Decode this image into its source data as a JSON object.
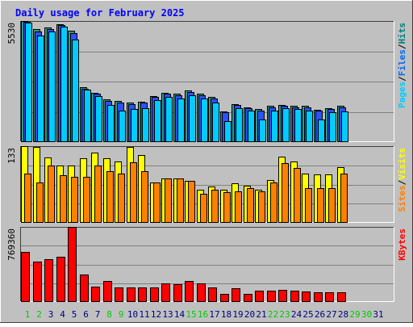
{
  "chart_data": {
    "type": "bar",
    "title": "Daily usage for February 2025",
    "days": [
      "1",
      "2",
      "3",
      "4",
      "5",
      "6",
      "7",
      "8",
      "9",
      "10",
      "11",
      "12",
      "13",
      "14",
      "15",
      "16",
      "17",
      "18",
      "19",
      "20",
      "21",
      "22",
      "23",
      "24",
      "25",
      "26",
      "27",
      "28",
      "29",
      "30",
      "31"
    ],
    "weekend_days": [
      "1",
      "2",
      "8",
      "9",
      "15",
      "16",
      "22",
      "23",
      "29",
      "30"
    ],
    "data_days": 28,
    "panels": [
      {
        "id": "hits",
        "ymax": 5530,
        "ytick_label": "5530",
        "legend": [
          "Pages",
          "/",
          "Files",
          "/",
          "Hits"
        ],
        "legend_colors": [
          "#00ccff",
          "#000000",
          "#0066ff",
          "#000000",
          "#008080"
        ],
        "series": [
          {
            "name": "Hits",
            "color": "#2f9b86",
            "values": [
              5530,
              5150,
              5250,
              5400,
              5100,
              2500,
              2250,
              1950,
              1880,
              1800,
              1850,
              2100,
              2250,
              2200,
              2350,
              2200,
              2050,
              1400,
              1750,
              1600,
              1500,
              1650,
              1700,
              1650,
              1650,
              1480,
              1550,
              1650
            ]
          },
          {
            "name": "Files",
            "color": "#2a52ff",
            "values": [
              5480,
              5050,
              5150,
              5350,
              4980,
              2450,
              2200,
              1880,
              1820,
              1750,
              1800,
              2050,
              2200,
              2150,
              2300,
              2150,
              2000,
              1350,
              1700,
              1550,
              1450,
              1600,
              1650,
              1600,
              1600,
              1430,
              1500,
              1600
            ]
          },
          {
            "name": "Pages",
            "color": "#00ccff",
            "values": [
              5450,
              4850,
              5050,
              5280,
              4700,
              2400,
              2100,
              1700,
              1450,
              1500,
              1550,
              1900,
              2050,
              2000,
              2150,
              2000,
              1800,
              950,
              1550,
              1450,
              1050,
              1450,
              1550,
              1500,
              1450,
              1050,
              1350,
              1400
            ]
          }
        ]
      },
      {
        "id": "visits",
        "ymax": 133,
        "ytick_label": "133",
        "legend": [
          "Sites",
          "/",
          "Visits"
        ],
        "legend_colors": [
          "#ff8000",
          "#000000",
          "#ffff00"
        ],
        "series": [
          {
            "name": "Visits",
            "color": "#ffff00",
            "values": [
              133,
              132,
              113,
              100,
              100,
              112,
              122,
              112,
              107,
              132,
              118,
              70,
              77,
              77,
              73,
              58,
              63,
              58,
              68,
              64,
              58,
              74,
              115,
              107,
              86,
              84,
              84,
              96
            ]
          },
          {
            "name": "Sites",
            "color": "#ff8000",
            "values": [
              85,
              70,
              100,
              83,
              80,
              80,
              99,
              90,
              85,
              105,
              89,
              70,
              77,
              77,
              73,
              50,
              58,
              53,
              55,
              60,
              55,
              70,
              103,
              95,
              60,
              60,
              60,
              85
            ]
          }
        ]
      },
      {
        "id": "kbytes",
        "ymax": 769360,
        "ytick_label": "769360",
        "legend": [
          "KBytes"
        ],
        "legend_colors": [
          "#ff0000"
        ],
        "series": [
          {
            "name": "KBytes",
            "color": "#ff0000",
            "values": [
              510000,
              415000,
              440000,
              462000,
              769360,
              285000,
              160000,
              212000,
              150000,
              145000,
              145000,
              150000,
              192000,
              180000,
              212000,
              192000,
              148000,
              85000,
              140000,
              82000,
              112000,
              112000,
              120000,
              112000,
              105000,
              100000,
              100000,
              100000
            ]
          }
        ]
      }
    ],
    "colors": {
      "background": "#c0c0c0",
      "title": "#0000ff",
      "weekday_label": "#000080",
      "weekend_label": "#00cc00",
      "gridline": "#808080"
    }
  }
}
